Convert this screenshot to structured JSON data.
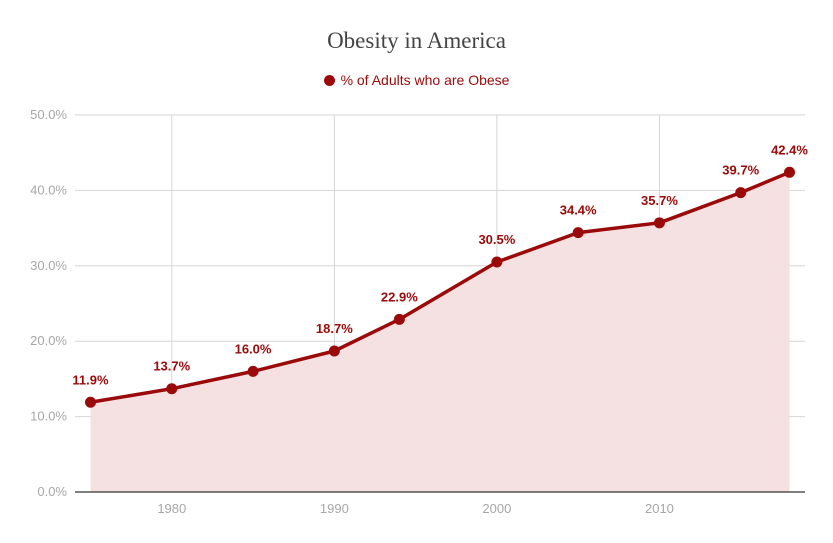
{
  "colors": {
    "series": "#9b0a0a",
    "area_fill": "#f5e1e1",
    "grid": "#d6d6d6",
    "axis_text": "#a7a7a7",
    "title_text": "#444444"
  },
  "chart_data": {
    "type": "area",
    "title": "Obesity in America",
    "xlabel": "",
    "ylabel": "",
    "xlim": [
      1975,
      2018
    ],
    "ylim": [
      0,
      50
    ],
    "x_ticks": [
      1980,
      1990,
      2000,
      2010
    ],
    "y_ticks": [
      0,
      10,
      20,
      30,
      40,
      50
    ],
    "y_tick_labels": [
      "0.0%",
      "10.0%",
      "20.0%",
      "30.0%",
      "40.0%",
      "50.0%"
    ],
    "grid": true,
    "legend_position": "top-center",
    "series": [
      {
        "name": "% of Adults who are Obese",
        "x": [
          1975,
          1980,
          1985,
          1990,
          1994,
          2000,
          2005,
          2010,
          2015,
          2018
        ],
        "values": [
          11.9,
          13.7,
          16.0,
          18.7,
          22.9,
          30.5,
          34.4,
          35.7,
          39.7,
          42.4
        ],
        "labels": [
          "11.9%",
          "13.7%",
          "16.0%",
          "18.7%",
          "22.9%",
          "30.5%",
          "34.4%",
          "35.7%",
          "39.7%",
          "42.4%"
        ]
      }
    ]
  }
}
